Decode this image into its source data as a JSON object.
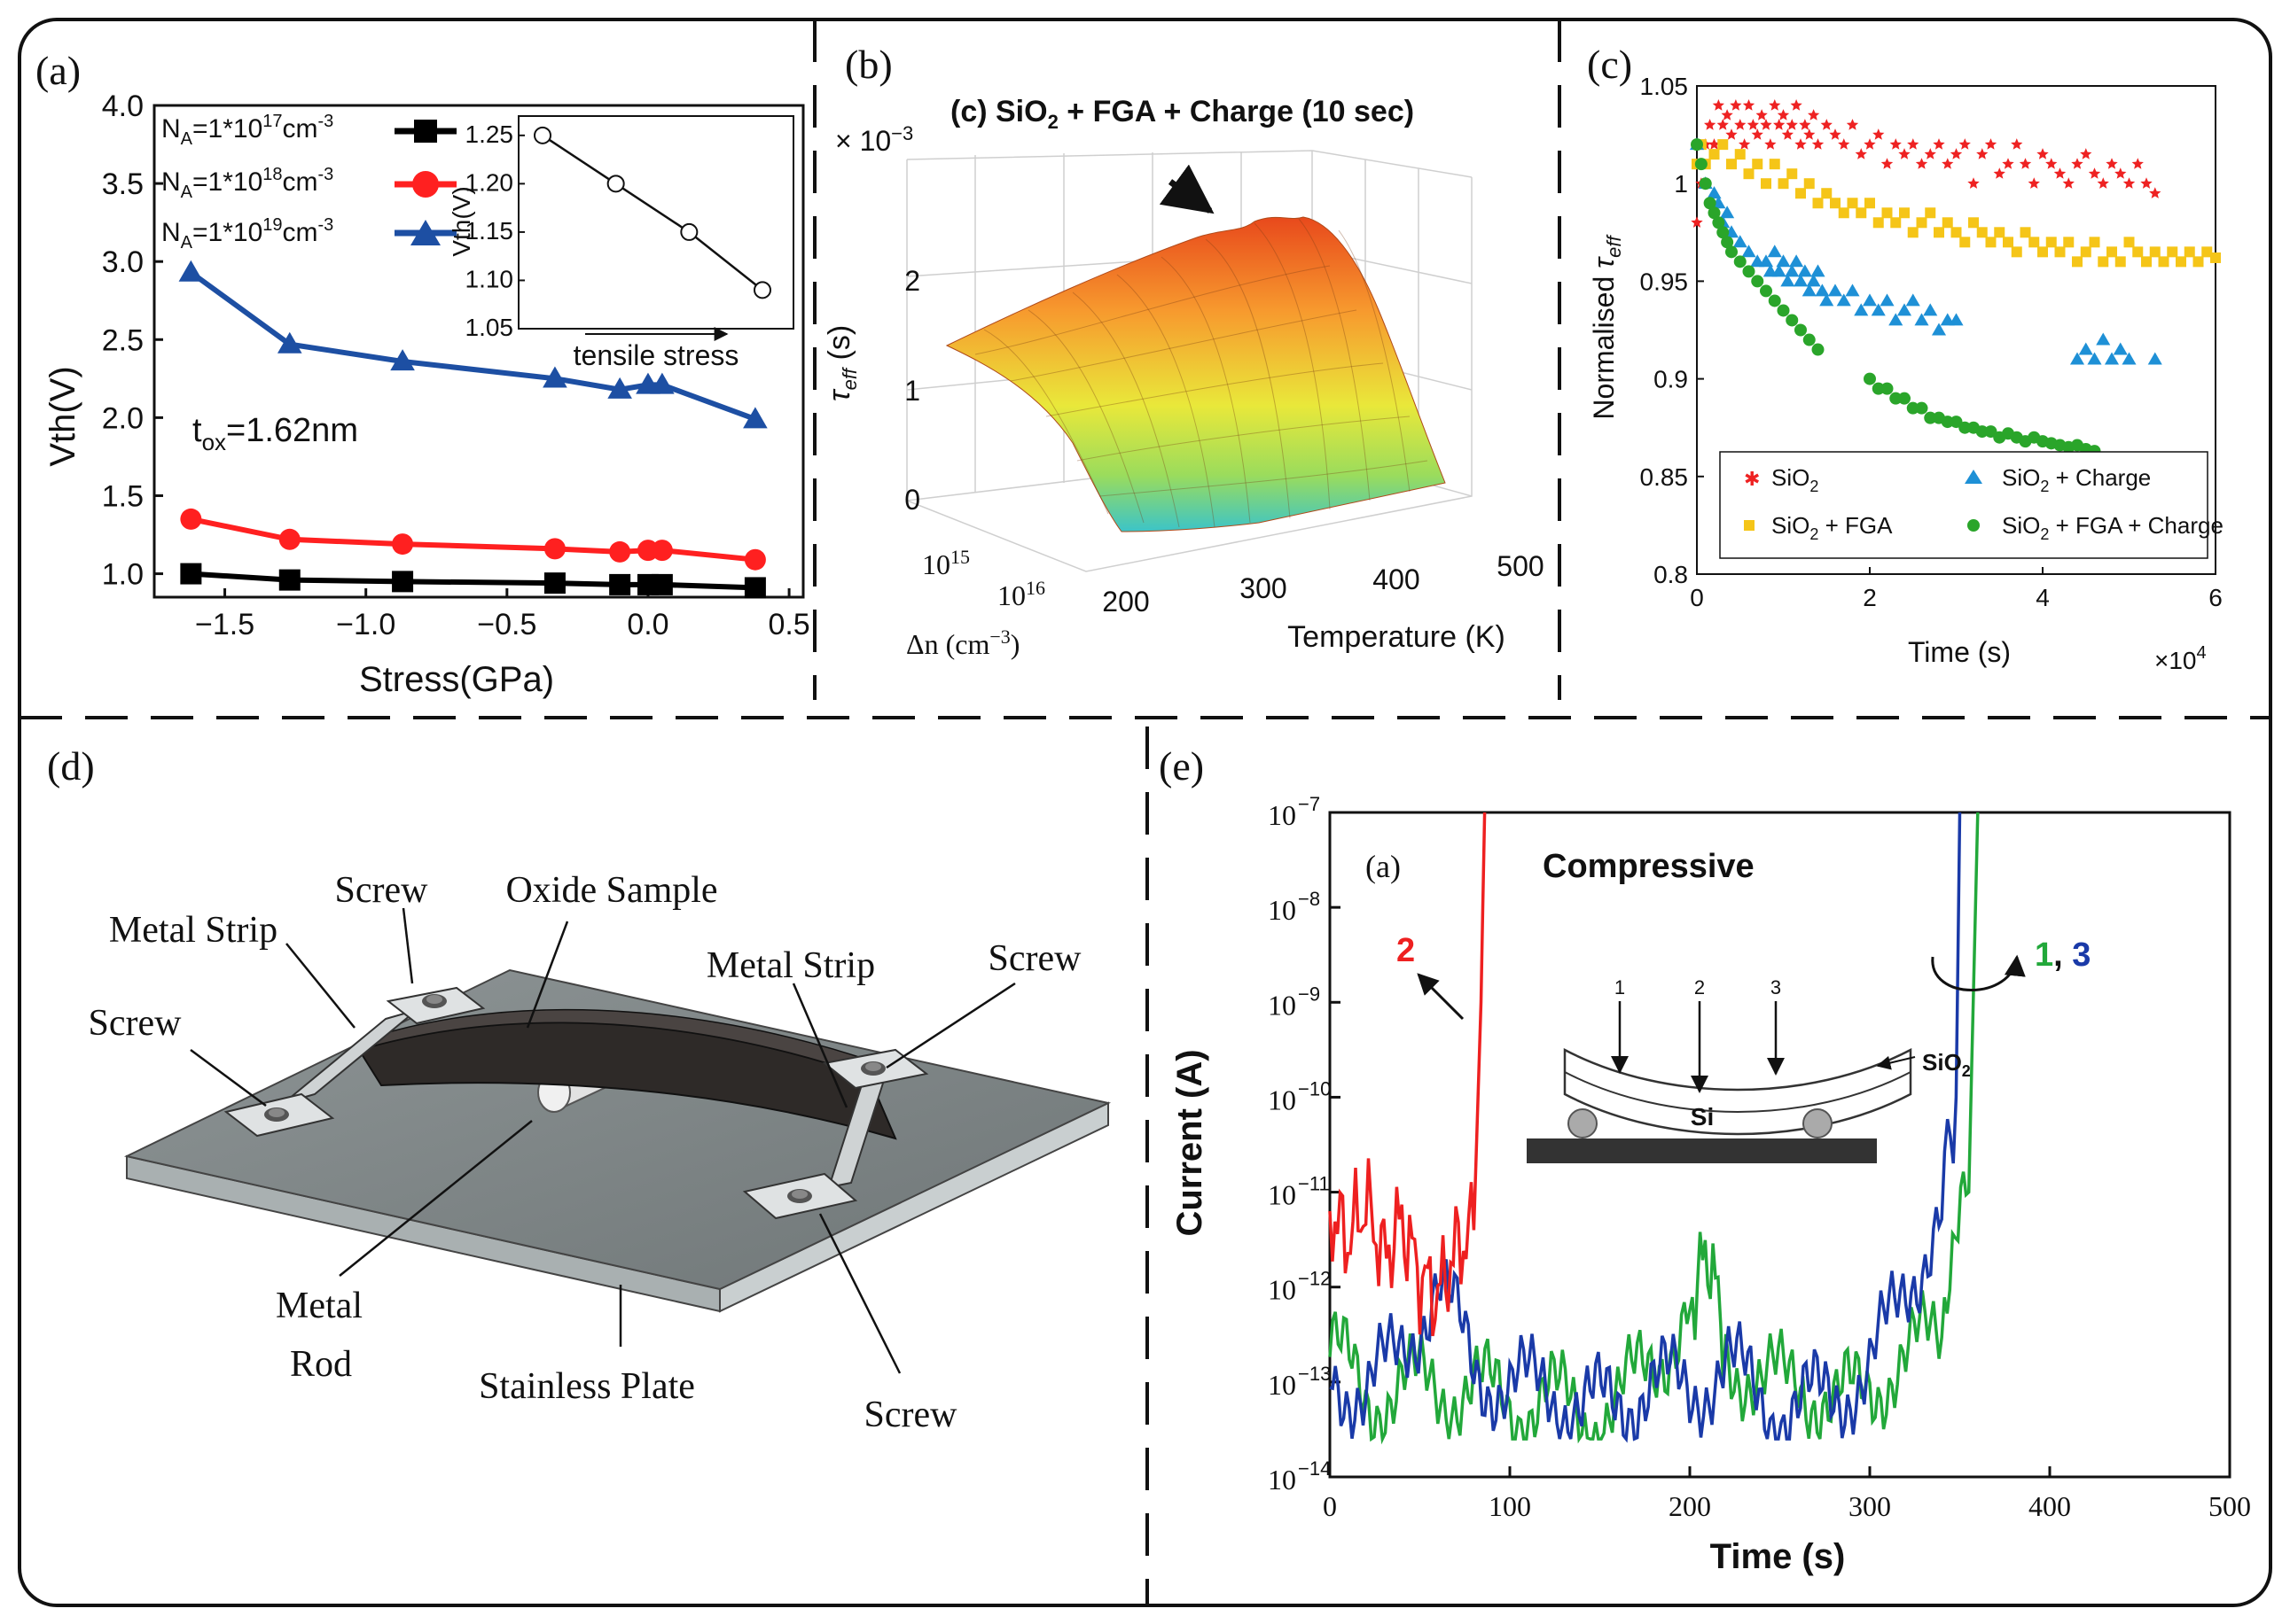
{
  "chart_data": [
    {
      "panel": "(a)",
      "type": "line",
      "xlabel": "Stress(GPa)",
      "ylabel": "Vth(V)",
      "xlim": [
        -1.75,
        0.55
      ],
      "ylim": [
        0.85,
        4.0
      ],
      "xticks": [
        "−1.5",
        "−1.0",
        "−0.5",
        "0.0",
        "0.5"
      ],
      "xtick_values": [
        -1.5,
        -1.0,
        -0.5,
        0.0,
        0.5
      ],
      "yticks": [
        "1.0",
        "1.5",
        "2.0",
        "2.5",
        "3.0",
        "3.5",
        "4.0"
      ],
      "ytick_values": [
        1.0,
        1.5,
        2.0,
        2.5,
        3.0,
        3.5,
        4.0
      ],
      "x": [
        -1.62,
        -1.27,
        -0.87,
        -0.33,
        -0.1,
        0.0,
        0.05,
        0.38
      ],
      "series": [
        {
          "name": "NA=1*10^17 cm^-3",
          "na_sup": "17",
          "color": "#000000",
          "marker": "square",
          "values": [
            1.0,
            0.96,
            0.95,
            0.94,
            0.93,
            0.93,
            0.93,
            0.91
          ]
        },
        {
          "name": "NA=1*10^18 cm^-3",
          "na_sup": "18",
          "color": "#ff2020",
          "marker": "circle",
          "values": [
            1.35,
            1.22,
            1.19,
            1.16,
            1.14,
            1.15,
            1.15,
            1.09
          ]
        },
        {
          "name": "NA=1*10^19 cm^-3",
          "na_sup": "19",
          "color": "#1d4fa3",
          "marker": "triangle",
          "values": [
            2.93,
            2.47,
            2.36,
            2.25,
            2.18,
            2.21,
            2.21,
            1.99
          ]
        }
      ],
      "annotation": "tox=1.62nm",
      "inset": {
        "ylabel": "Vth(V)",
        "xlabel": "tensile stress",
        "yticks": [
          "1.05",
          "1.10",
          "1.15",
          "1.20",
          "1.25"
        ],
        "ytick_values": [
          1.05,
          1.1,
          1.15,
          1.2,
          1.25
        ],
        "ylim": [
          1.05,
          1.27
        ],
        "values": [
          1.25,
          1.2,
          1.15,
          1.09
        ]
      }
    },
    {
      "panel": "(b)",
      "type": "surface",
      "title": "(c) SiO2 + FGA + Charge (10 sec)",
      "zlabel": "τeff (s)",
      "zscale": "× 10−3",
      "zticks": [
        "0",
        "1",
        "2"
      ],
      "xlabel": "Temperature (K)",
      "xticks": [
        "200",
        "300",
        "400",
        "500"
      ],
      "ylabel": "Δn (cm−3)",
      "yticks": [
        "10^15",
        "10^16"
      ]
    },
    {
      "panel": "(c)",
      "type": "scatter",
      "xlabel": "Time (s)",
      "xscale": "×10^4",
      "ylabel": "Normalised τeff",
      "xlim": [
        0,
        6
      ],
      "ylim": [
        0.8,
        1.05
      ],
      "xticks": [
        "0",
        "2",
        "4",
        "6"
      ],
      "xtick_values": [
        0,
        2,
        4,
        6
      ],
      "yticks": [
        "0.8",
        "0.85",
        "0.9",
        "0.95",
        "1",
        "1.05"
      ],
      "ytick_values": [
        0.8,
        0.85,
        0.9,
        0.95,
        1.0,
        1.05
      ],
      "series": [
        {
          "name": "SiO2",
          "color": "#ee2222",
          "marker": "star",
          "x": [
            0.0,
            0.05,
            0.1,
            0.15,
            0.2,
            0.25,
            0.3,
            0.35,
            0.4,
            0.45,
            0.5,
            0.55,
            0.6,
            0.65,
            0.7,
            0.75,
            0.8,
            0.85,
            0.9,
            0.95,
            1.0,
            1.05,
            1.1,
            1.15,
            1.2,
            1.25,
            1.3,
            1.35,
            1.4,
            1.5,
            1.6,
            1.7,
            1.8,
            1.9,
            2.0,
            2.1,
            2.2,
            2.3,
            2.4,
            2.5,
            2.6,
            2.7,
            2.8,
            2.9,
            3.0,
            3.1,
            3.2,
            3.3,
            3.4,
            3.5,
            3.6,
            3.7,
            3.8,
            3.9,
            4.0,
            4.1,
            4.2,
            4.3,
            4.4,
            4.5,
            4.6,
            4.7,
            4.8,
            4.9,
            5.0,
            5.1,
            5.2,
            5.3
          ],
          "y": [
            0.98,
            1.0,
            1.02,
            1.03,
            1.02,
            1.04,
            1.03,
            1.035,
            1.025,
            1.04,
            1.03,
            1.02,
            1.04,
            1.03,
            1.025,
            1.035,
            1.03,
            1.02,
            1.04,
            1.03,
            1.035,
            1.025,
            1.03,
            1.04,
            1.02,
            1.03,
            1.025,
            1.035,
            1.02,
            1.03,
            1.025,
            1.02,
            1.03,
            1.015,
            1.02,
            1.025,
            1.01,
            1.02,
            1.015,
            1.02,
            1.01,
            1.015,
            1.02,
            1.01,
            1.015,
            1.02,
            1.0,
            1.015,
            1.02,
            1.005,
            1.01,
            1.02,
            1.01,
            1.0,
            1.015,
            1.01,
            1.005,
            1.0,
            1.01,
            1.015,
            1.005,
            1.0,
            1.01,
            1.005,
            1.0,
            1.01,
            1.0,
            0.995
          ]
        },
        {
          "name": "SiO2 + FGA",
          "color": "#f5c518",
          "marker": "square",
          "x": [
            0.0,
            0.05,
            0.1,
            0.2,
            0.3,
            0.4,
            0.5,
            0.6,
            0.7,
            0.8,
            0.9,
            1.0,
            1.1,
            1.2,
            1.3,
            1.4,
            1.5,
            1.6,
            1.7,
            1.8,
            1.9,
            2.0,
            2.1,
            2.2,
            2.3,
            2.4,
            2.5,
            2.6,
            2.7,
            2.8,
            2.9,
            3.0,
            3.1,
            3.2,
            3.3,
            3.4,
            3.5,
            3.6,
            3.7,
            3.8,
            3.9,
            4.0,
            4.1,
            4.2,
            4.3,
            4.4,
            4.5,
            4.6,
            4.7,
            4.8,
            4.9,
            5.0,
            5.1,
            5.2,
            5.3,
            5.4,
            5.5,
            5.6,
            5.7,
            5.8,
            5.9,
            6.0
          ],
          "y": [
            1.01,
            1.02,
            1.01,
            1.015,
            1.02,
            1.01,
            1.015,
            1.005,
            1.01,
            1.0,
            1.01,
            1.0,
            1.005,
            0.995,
            1.0,
            0.99,
            0.995,
            0.99,
            0.985,
            0.99,
            0.985,
            0.99,
            0.98,
            0.985,
            0.98,
            0.985,
            0.975,
            0.98,
            0.985,
            0.975,
            0.98,
            0.975,
            0.97,
            0.98,
            0.975,
            0.97,
            0.975,
            0.97,
            0.965,
            0.975,
            0.97,
            0.965,
            0.97,
            0.965,
            0.97,
            0.96,
            0.965,
            0.97,
            0.96,
            0.965,
            0.96,
            0.97,
            0.965,
            0.96,
            0.965,
            0.96,
            0.965,
            0.96,
            0.965,
            0.96,
            0.965,
            0.962
          ]
        },
        {
          "name": "SiO2 + Charge",
          "color": "#1e90d6",
          "marker": "triangle",
          "x": [
            0.0,
            0.1,
            0.2,
            0.25,
            0.3,
            0.35,
            0.4,
            0.5,
            0.6,
            0.7,
            0.8,
            0.85,
            0.9,
            0.95,
            1.0,
            1.05,
            1.1,
            1.15,
            1.2,
            1.25,
            1.3,
            1.35,
            1.4,
            1.45,
            1.5,
            1.6,
            1.7,
            1.8,
            1.9,
            2.0,
            2.1,
            2.2,
            2.3,
            2.4,
            2.5,
            2.6,
            2.7,
            2.8,
            2.9,
            3.0,
            4.4,
            4.5,
            4.6,
            4.7,
            4.8,
            4.9,
            5.0,
            5.3
          ],
          "y": [
            1.02,
            1.0,
            0.995,
            0.99,
            0.98,
            0.985,
            0.975,
            0.97,
            0.965,
            0.96,
            0.96,
            0.955,
            0.965,
            0.955,
            0.96,
            0.95,
            0.955,
            0.96,
            0.95,
            0.955,
            0.945,
            0.95,
            0.955,
            0.945,
            0.94,
            0.945,
            0.94,
            0.945,
            0.935,
            0.94,
            0.935,
            0.94,
            0.93,
            0.935,
            0.94,
            0.93,
            0.935,
            0.925,
            0.93,
            0.93,
            0.91,
            0.915,
            0.91,
            0.92,
            0.91,
            0.915,
            0.91,
            0.91
          ]
        },
        {
          "name": "SiO2 + FGA + Charge",
          "color": "#2aa52a",
          "marker": "circle",
          "x": [
            0.0,
            0.05,
            0.1,
            0.15,
            0.2,
            0.25,
            0.3,
            0.35,
            0.4,
            0.5,
            0.6,
            0.7,
            0.8,
            0.9,
            1.0,
            1.1,
            1.2,
            1.3,
            1.4,
            2.0,
            2.1,
            2.2,
            2.3,
            2.4,
            2.5,
            2.6,
            2.7,
            2.8,
            2.9,
            3.0,
            3.1,
            3.2,
            3.3,
            3.4,
            3.5,
            3.6,
            3.7,
            3.8,
            3.9,
            4.0,
            4.1,
            4.2,
            4.3,
            4.4,
            4.5,
            4.6
          ],
          "y": [
            1.02,
            1.01,
            1.0,
            0.99,
            0.985,
            0.98,
            0.975,
            0.97,
            0.965,
            0.96,
            0.955,
            0.95,
            0.945,
            0.94,
            0.935,
            0.93,
            0.925,
            0.92,
            0.915,
            0.9,
            0.895,
            0.895,
            0.89,
            0.89,
            0.885,
            0.885,
            0.88,
            0.88,
            0.878,
            0.878,
            0.875,
            0.875,
            0.873,
            0.873,
            0.87,
            0.872,
            0.87,
            0.868,
            0.87,
            0.868,
            0.867,
            0.866,
            0.865,
            0.866,
            0.864,
            0.863
          ]
        }
      ]
    },
    {
      "panel": "(e)",
      "type": "line",
      "inner_label": "(a)",
      "title": "Compressive",
      "xlabel": "Time  (s)",
      "ylabel": "Current  (A)",
      "xlim": [
        0,
        500
      ],
      "ylim_log10": [
        -14,
        -7
      ],
      "xticks": [
        "0",
        "100",
        "200",
        "300",
        "400",
        "500"
      ],
      "xtick_values": [
        0,
        100,
        200,
        300,
        400,
        500
      ],
      "ytick_exponents": [
        -7,
        -8,
        -9,
        -10,
        -11,
        -12,
        -13,
        -14
      ],
      "ytick_base": "10",
      "series": [
        {
          "name": "2",
          "color": "#ee2020",
          "breakdown_time": 84,
          "x": [
            0,
            10,
            20,
            30,
            40,
            50,
            60,
            70,
            80,
            84,
            86
          ],
          "log10_current": [
            -11.2,
            -11.5,
            -11.1,
            -11.7,
            -11.3,
            -11.9,
            -12.1,
            -11.6,
            -11.4,
            -9,
            -7
          ]
        },
        {
          "name": "3",
          "color": "#1a3aa8",
          "breakdown_time": 350,
          "x": [
            0,
            20,
            40,
            60,
            80,
            100,
            120,
            140,
            160,
            180,
            200,
            220,
            240,
            260,
            280,
            300,
            320,
            340,
            348,
            350
          ],
          "log10_current": [
            -12.8,
            -13.2,
            -12.6,
            -12.0,
            -12.8,
            -13.1,
            -13.0,
            -13.3,
            -13.2,
            -13.0,
            -13.1,
            -12.8,
            -13.2,
            -13.3,
            -13.1,
            -12.9,
            -12.0,
            -11.2,
            -10.0,
            -7
          ]
        },
        {
          "name": "1",
          "color": "#22a83a",
          "breakdown_time": 360,
          "x": [
            0,
            20,
            40,
            60,
            80,
            100,
            120,
            140,
            160,
            180,
            200,
            210,
            220,
            240,
            260,
            280,
            300,
            320,
            340,
            355,
            360
          ],
          "log10_current": [
            -12.6,
            -13.2,
            -13.0,
            -13.1,
            -13.0,
            -13.3,
            -13.1,
            -13.4,
            -13.2,
            -12.8,
            -12.2,
            -11.6,
            -12.6,
            -13.1,
            -12.9,
            -13.3,
            -13.0,
            -12.8,
            -12.4,
            -11.0,
            -7
          ]
        }
      ],
      "annotations": {
        "label_2": "2",
        "label_1": "1",
        "label_comma": ", ",
        "label_3": "3",
        "inset_labels": [
          "1",
          "2",
          "3"
        ],
        "inset_si": "Si",
        "inset_sio2": "SiO2"
      }
    }
  ],
  "panels": {
    "a_label": "(a)",
    "b_label": "(b)",
    "c_label": "(c)",
    "d_label": "(d)",
    "e_label": "(e)"
  },
  "panel_a_text": {
    "na_prefix": "N",
    "na_sub": "A",
    "na_eq": "=1*10",
    "na_unit": "cm",
    "na_unit_sup": "-3",
    "tox_prefix": "t",
    "tox_sub": "ox",
    "tox_value": "=1.62nm"
  },
  "panel_b_text": {
    "title_main": "(c) SiO",
    "title_sub": "2",
    "title_rest": " + FGA + Charge (10 sec)",
    "scale_prefix": "× 10",
    "scale_sup": "−3",
    "tau": "τ",
    "tau_sub": "eff",
    "tau_unit": " (s)",
    "dn_label": "Δn (cm",
    "dn_sup": "−3",
    "dn_close": ")",
    "y_base": "10",
    "y_sup": [
      "15",
      "16"
    ]
  },
  "panel_c_text": {
    "ylabel_main": "Normalised ",
    "ylabel_tau": "τ",
    "ylabel_sub": "eff",
    "xscale_base": "×10",
    "xscale_sup": "4",
    "legend": [
      {
        "main": "SiO",
        "sub": "2",
        "rest": ""
      },
      {
        "main": "SiO",
        "sub": "2",
        "rest": " + FGA"
      },
      {
        "main": "SiO",
        "sub": "2",
        "rest": " + Charge"
      },
      {
        "main": "SiO",
        "sub": "2",
        "rest": " + FGA + Charge"
      }
    ]
  },
  "panel_d": {
    "labels": {
      "screw_top": "Screw",
      "oxide_sample": "Oxide Sample",
      "metal_strip_left": "Metal Strip",
      "metal_strip_right": "Metal Strip",
      "screw_right": "Screw",
      "screw_left": "Screw",
      "metal_rod_1": "Metal",
      "metal_rod_2": "Rod",
      "stainless_plate": "Stainless Plate",
      "screw_bottom": "Screw"
    }
  },
  "colors": {
    "frame": "#111111",
    "red": "#ee2020",
    "blue": "#1d4fa3",
    "green": "#22a83a"
  }
}
